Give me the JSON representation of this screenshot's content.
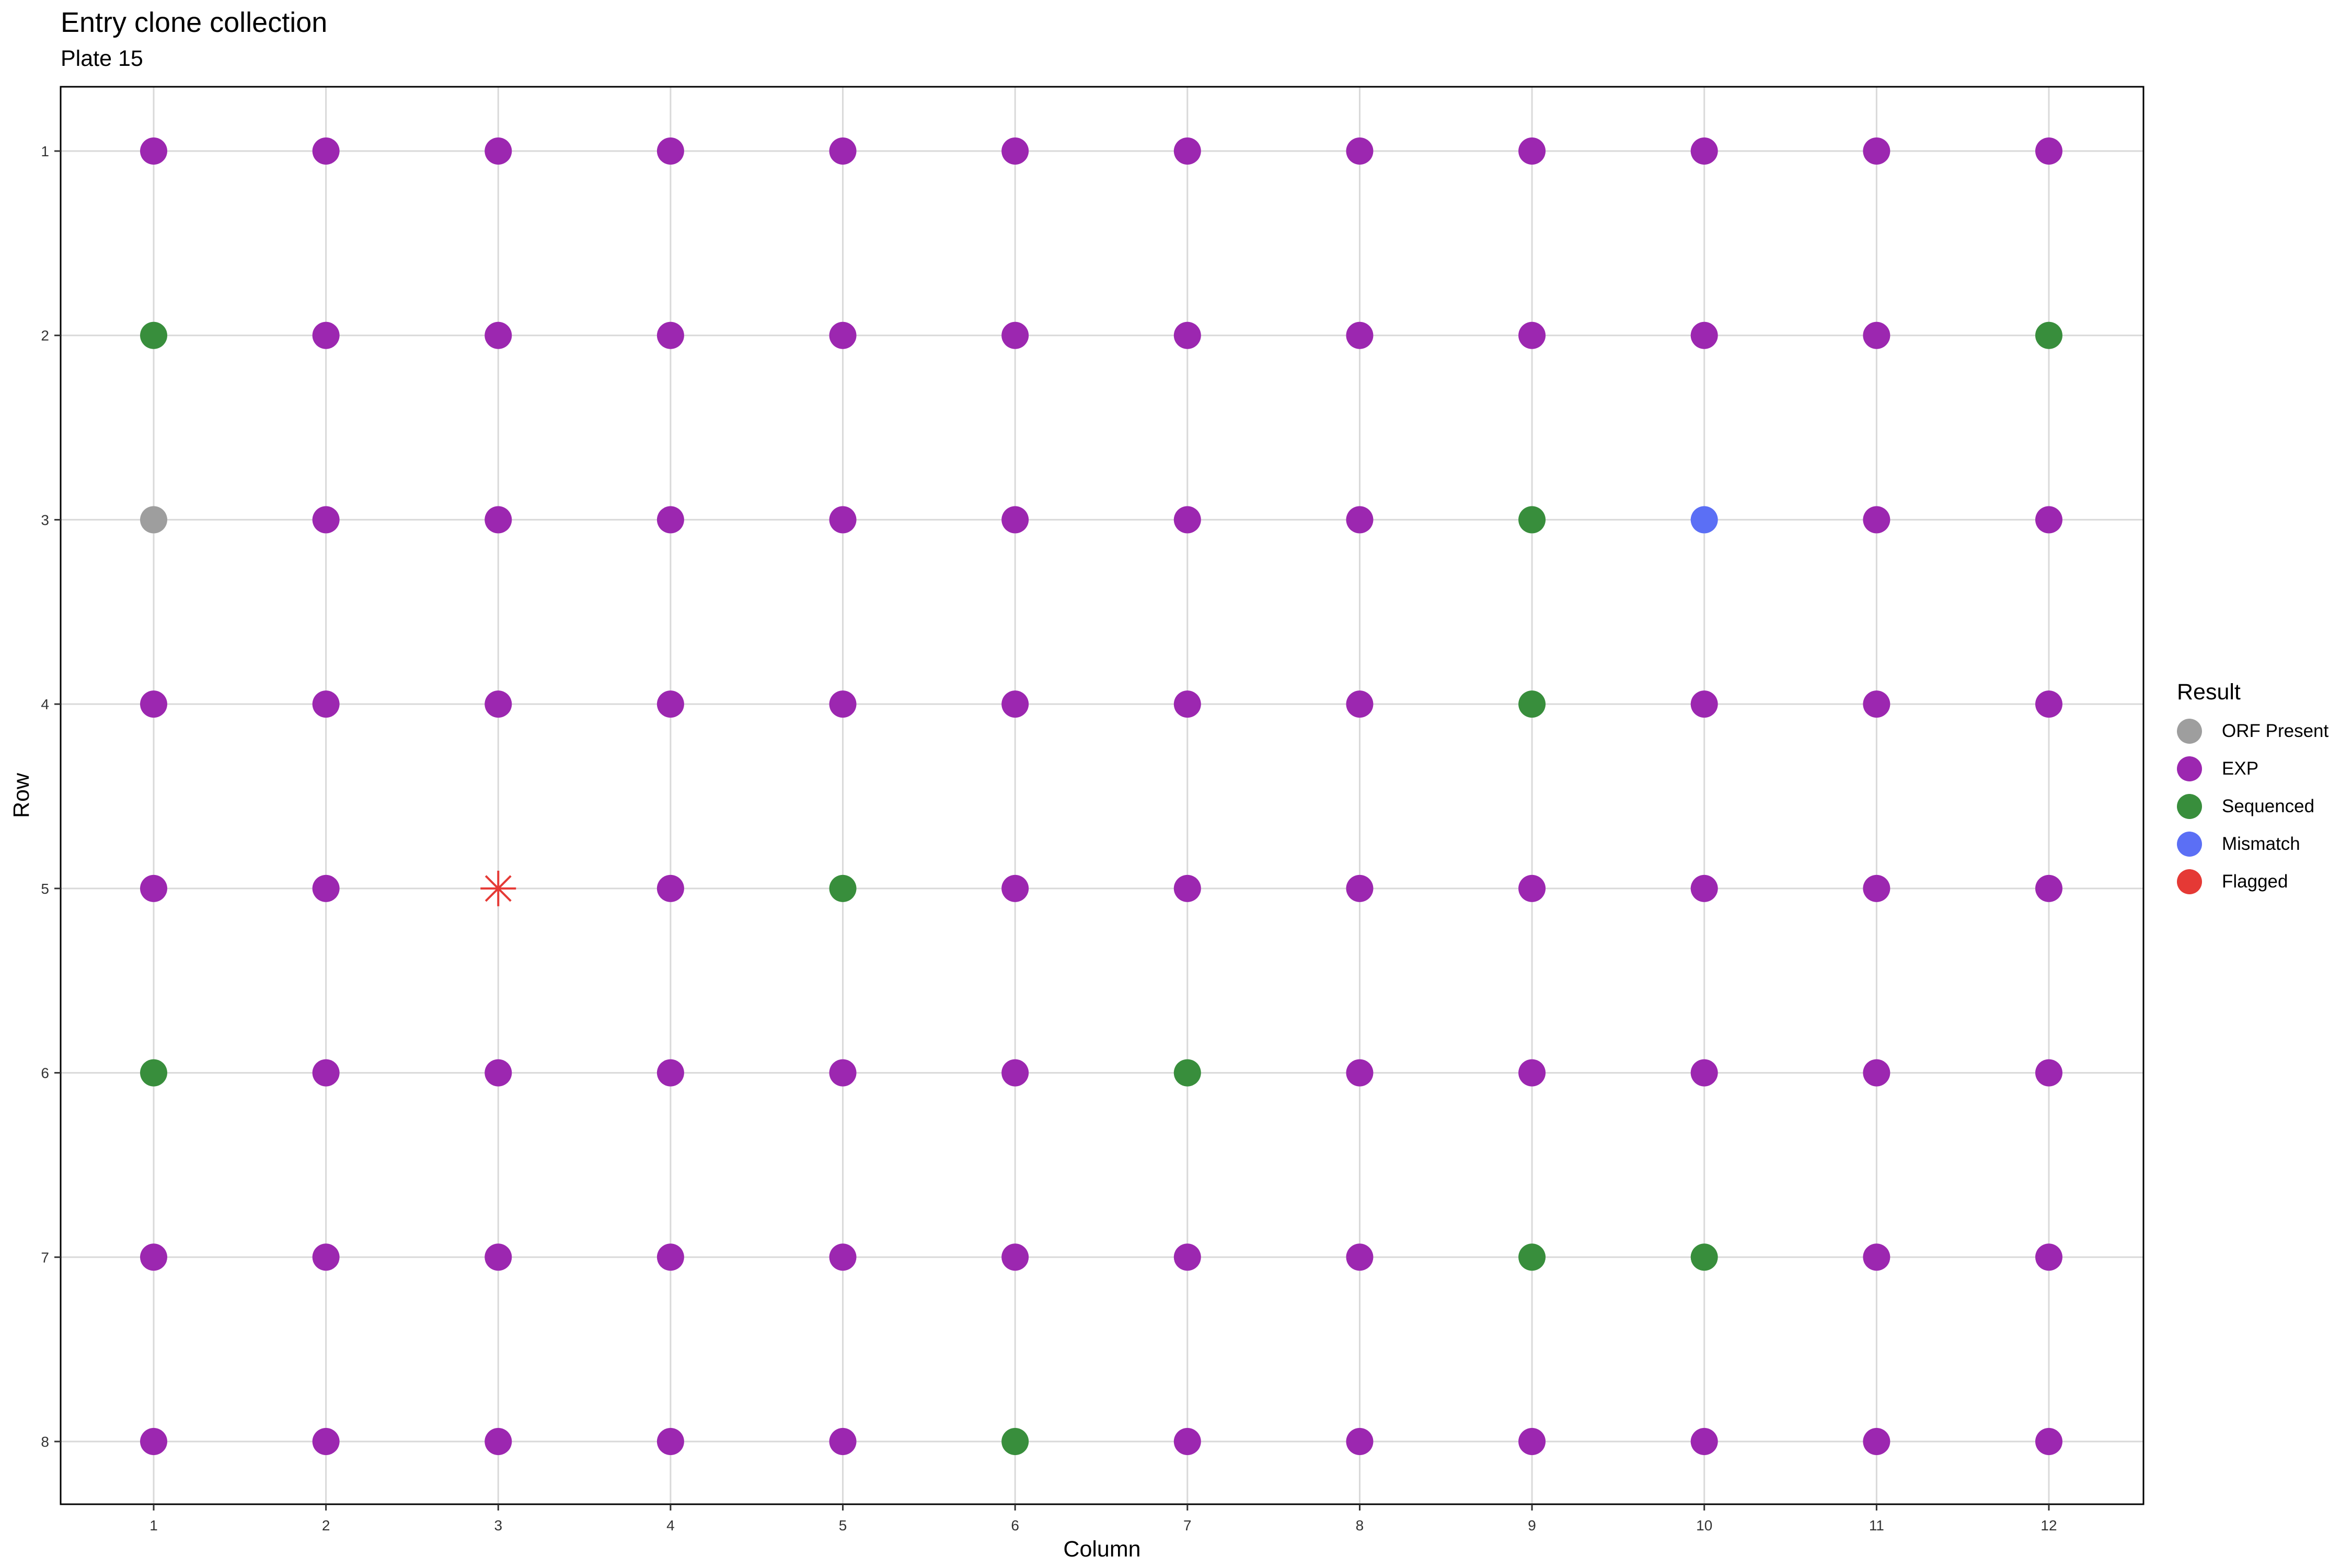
{
  "chart_data": {
    "type": "scatter",
    "title": "Entry clone collection",
    "subtitle": "Plate 15",
    "xlabel": "Column",
    "ylabel": "Row",
    "x_ticks": [
      "1",
      "2",
      "3",
      "4",
      "5",
      "6",
      "7",
      "8",
      "9",
      "10",
      "11",
      "12"
    ],
    "y_ticks": [
      "1",
      "2",
      "3",
      "4",
      "5",
      "6",
      "7",
      "8"
    ],
    "xlim": [
      1,
      12
    ],
    "ylim": [
      1,
      8
    ],
    "y_reversed": true,
    "grid": true,
    "legend": {
      "title": "Result",
      "position": "right",
      "entries": [
        {
          "label": "ORF Present",
          "color": "#9E9E9E"
        },
        {
          "label": "EXP",
          "color": "#9C27B0"
        },
        {
          "label": "Sequenced",
          "color": "#388E3C"
        },
        {
          "label": "Mismatch",
          "color": "#5B6FF5"
        },
        {
          "label": "Flagged",
          "color": "#E53935"
        }
      ]
    },
    "default_result": "EXP",
    "exceptions": [
      {
        "row": 2,
        "col": 1,
        "result": "Sequenced"
      },
      {
        "row": 2,
        "col": 12,
        "result": "Sequenced"
      },
      {
        "row": 3,
        "col": 1,
        "result": "ORF Present"
      },
      {
        "row": 3,
        "col": 9,
        "result": "Sequenced"
      },
      {
        "row": 3,
        "col": 10,
        "result": "Mismatch"
      },
      {
        "row": 4,
        "col": 9,
        "result": "Sequenced"
      },
      {
        "row": 5,
        "col": 3,
        "result": "Flagged",
        "marker": "asterisk"
      },
      {
        "row": 5,
        "col": 5,
        "result": "Sequenced"
      },
      {
        "row": 6,
        "col": 1,
        "result": "Sequenced"
      },
      {
        "row": 6,
        "col": 7,
        "result": "Sequenced"
      },
      {
        "row": 7,
        "col": 9,
        "result": "Sequenced"
      },
      {
        "row": 7,
        "col": 10,
        "result": "Sequenced"
      },
      {
        "row": 8,
        "col": 6,
        "result": "Sequenced"
      }
    ]
  }
}
